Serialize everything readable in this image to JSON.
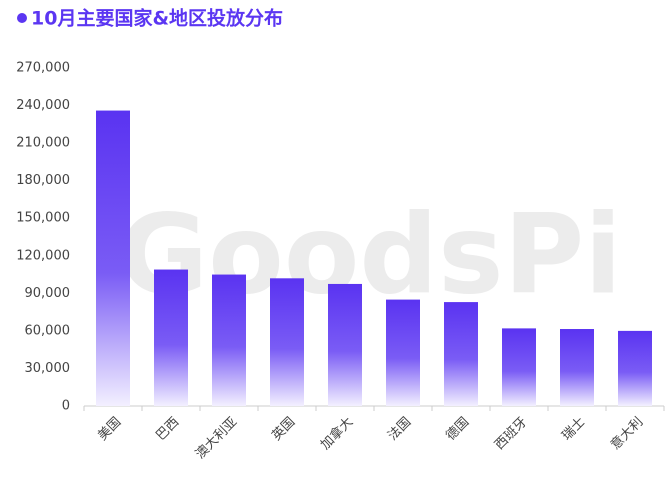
{
  "chart_data": {
    "type": "bar",
    "title": "10月主要国家&地区投放分布",
    "watermark": "GoodsPi",
    "categories": [
      "美国",
      "巴西",
      "澳大利亚",
      "英国",
      "加拿大",
      "法国",
      "德国",
      "西班牙",
      "瑞士",
      "意大利"
    ],
    "values": [
      236000,
      109000,
      105000,
      102000,
      97500,
      85000,
      83000,
      62000,
      61500,
      60000
    ],
    "color": "#5b36f2",
    "ylim": [
      0,
      270000
    ],
    "yticks": [
      0,
      {
        "value": 30000,
        "label": "30,000"
      },
      {
        "value": 60000,
        "label": "60,000"
      },
      {
        "value": 90000,
        "label": "90,000"
      },
      {
        "value": 120000,
        "label": "120,000"
      },
      {
        "value": 150000,
        "label": "150,000"
      },
      {
        "value": 180000,
        "label": "180,000"
      },
      {
        "value": 210000,
        "label": "210,000"
      },
      {
        "value": 240000,
        "label": "240,000"
      },
      {
        "value": 270000,
        "label": "270,000"
      }
    ],
    "grid": false
  }
}
